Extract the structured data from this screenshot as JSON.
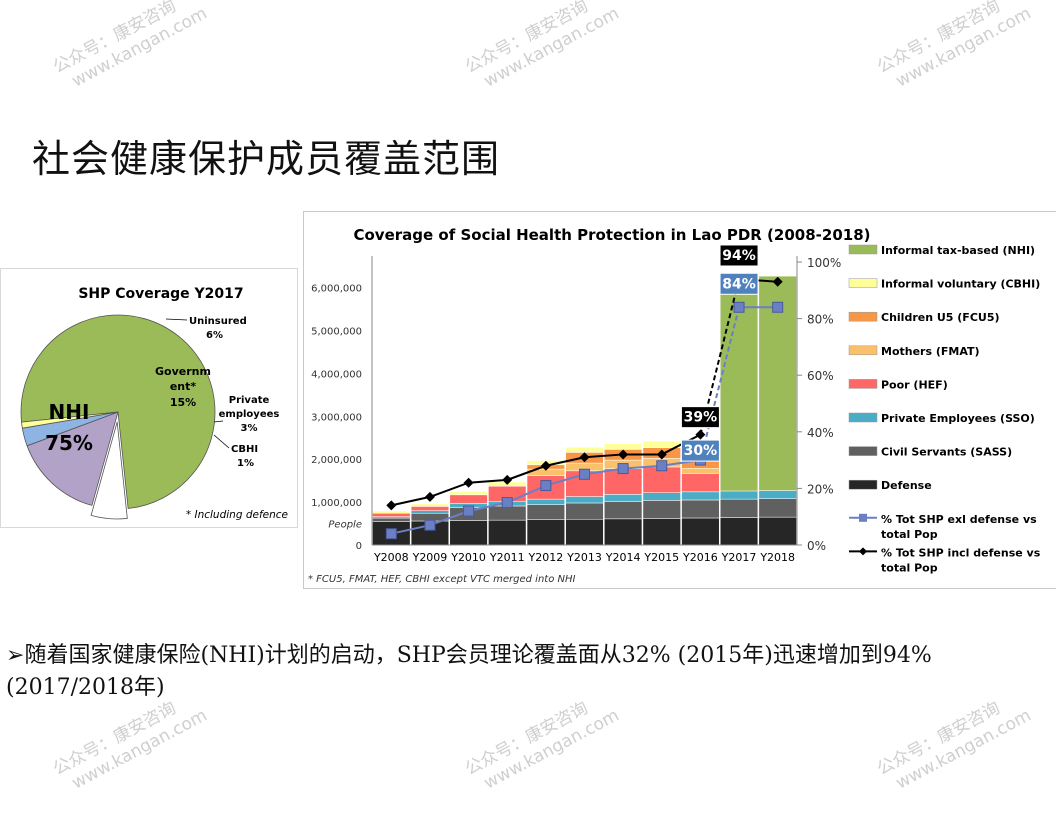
{
  "page": {
    "title": "社会健康保护成员覆盖范围",
    "bullet_marker": "➢",
    "bullet_text": "随着国家健康保险(NHI)计划的启动，SHP会员理论覆盖面从32% (2015年)迅速增加到94%(2017/2018年)",
    "watermark_line1": "公众号：康安咨询",
    "watermark_line2": "www.kangan.com"
  },
  "chart_data": [
    {
      "type": "pie",
      "title": "SHP Coverage Y2017",
      "footnote": "* Including defence",
      "slices": [
        {
          "name": "NHI",
          "value_label": "75%",
          "value": 75,
          "color": "#9bbb59"
        },
        {
          "name": "Uninsured",
          "value_label": "6%",
          "value": 6,
          "color": "#ffffff"
        },
        {
          "name": "Government*",
          "display_name": "Governm ent*",
          "value_label": "15%",
          "value": 15,
          "color": "#b3a2c7"
        },
        {
          "name": "Private employees",
          "value_label": "3%",
          "value": 3,
          "color": "#8eb4e3"
        },
        {
          "name": "CBHI",
          "value_label": "1%",
          "value": 1,
          "color": "#ffff99"
        }
      ]
    },
    {
      "type": "bar",
      "title": "Coverage of Social Health Protection in Lao PDR (2008-2018)",
      "ylabel": "People",
      "footnote": "* FCU5, FMAT, HEF, CBHI except VTC merged into NHI",
      "categories": [
        "Y2008",
        "Y2009",
        "Y2010",
        "Y2011",
        "Y2012",
        "Y2013",
        "Y2014",
        "Y2015",
        "Y2016",
        "Y2017",
        "Y2018"
      ],
      "ylim": [
        0,
        6600000
      ],
      "y_ticks": [
        0,
        1000000,
        2000000,
        3000000,
        4000000,
        5000000,
        6000000
      ],
      "y_tick_labels": [
        "0",
        "1,000,000",
        "2,000,000",
        "3,000,000",
        "4,000,000",
        "5,000,000",
        "6,000,000"
      ],
      "y2lim": [
        0,
        100
      ],
      "y2_tick_labels": [
        "0%",
        "20%",
        "40%",
        "60%",
        "80%",
        "100%"
      ],
      "series": [
        {
          "name": "Defense",
          "color": "#262626",
          "values": [
            550000,
            560000,
            570000,
            580000,
            590000,
            600000,
            610000,
            620000,
            630000,
            640000,
            650000
          ]
        },
        {
          "name": "Civil Servants (SASS)",
          "color": "#606060",
          "values": [
            80000,
            180000,
            300000,
            330000,
            350000,
            380000,
            400000,
            420000,
            420000,
            430000,
            430000
          ]
        },
        {
          "name": "Private Employees (SSO)",
          "color": "#4bacc6",
          "values": [
            30000,
            60000,
            100000,
            110000,
            130000,
            150000,
            170000,
            180000,
            190000,
            190000,
            190000
          ]
        },
        {
          "name": "Poor (HEF)",
          "color": "#ff6666",
          "values": [
            80000,
            100000,
            200000,
            350000,
            550000,
            600000,
            600000,
            600000,
            430000,
            0,
            0
          ]
        },
        {
          "name": "Mothers (FMAT)",
          "color": "#fac06a",
          "values": [
            0,
            0,
            0,
            0,
            150000,
            180000,
            200000,
            200000,
            120000,
            0,
            0
          ]
        },
        {
          "name": "Children U5 (FCU5)",
          "color": "#f79646",
          "values": [
            0,
            0,
            0,
            0,
            100000,
            250000,
            250000,
            250000,
            250000,
            0,
            0
          ]
        },
        {
          "name": "Informal voluntary (CBHI)",
          "color": "#ffff99",
          "values": [
            50000,
            60000,
            80000,
            100000,
            100000,
            120000,
            130000,
            150000,
            200000,
            0,
            0
          ]
        },
        {
          "name": "Informal tax-based (NHI)",
          "color": "#9bbb59",
          "values": [
            0,
            0,
            0,
            0,
            0,
            0,
            0,
            0,
            0,
            5000000,
            5000000
          ]
        }
      ],
      "lines": [
        {
          "name": "% Tot SHP exl defense vs total Pop",
          "color": "#6b7fc4",
          "values": [
            4,
            7,
            12,
            15,
            21,
            25,
            27,
            28,
            30,
            84,
            84
          ]
        },
        {
          "name": "% Tot SHP incl defense vs total Pop",
          "color": "#000000",
          "values": [
            14,
            17,
            22,
            23,
            28,
            31,
            32,
            32,
            39,
            94,
            93
          ]
        }
      ],
      "callouts": [
        {
          "text": "94%",
          "series": "% Tot SHP incl defense vs total Pop",
          "category": "Y2017"
        },
        {
          "text": "84%",
          "series": "% Tot SHP exl defense vs total Pop",
          "category": "Y2017"
        },
        {
          "text": "39%",
          "series": "% Tot SHP incl defense vs total Pop",
          "category": "Y2016"
        },
        {
          "text": "30%",
          "series": "% Tot SHP exl defense vs total Pop",
          "category": "Y2016"
        }
      ]
    }
  ]
}
